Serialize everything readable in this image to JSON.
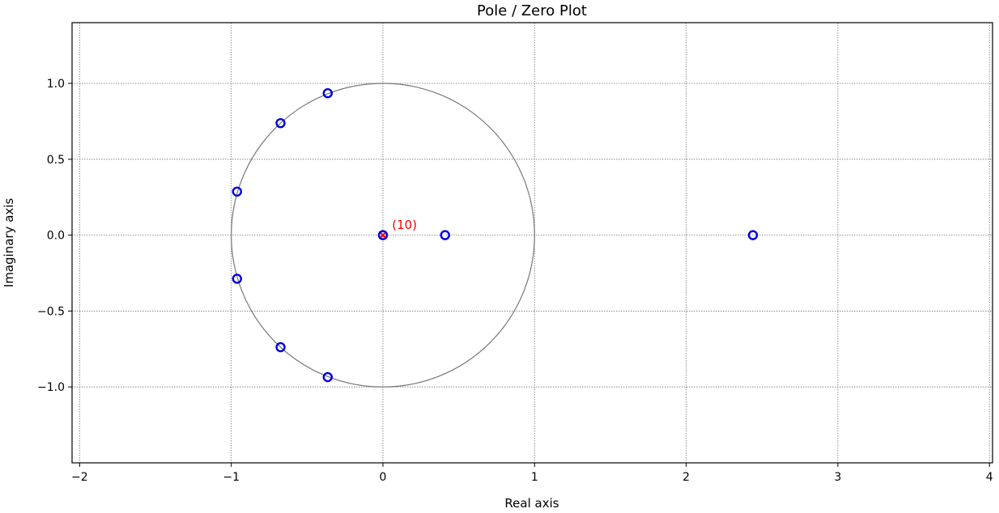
{
  "chart_data": {
    "type": "scatter",
    "title": "Pole / Zero Plot",
    "xlabel": "Real axis",
    "ylabel": "Imaginary axis",
    "xlim": [
      -2.05,
      4.02
    ],
    "ylim": [
      -1.5,
      1.4
    ],
    "xticks": [
      -2,
      -1,
      0,
      1,
      2,
      3,
      4
    ],
    "xtick_labels": [
      "−2",
      "−1",
      "0",
      "1",
      "2",
      "3",
      "4"
    ],
    "yticks": [
      1.0,
      0.5,
      0.0,
      -0.5,
      -1.0
    ],
    "ytick_labels": [
      "1.0",
      "0.5",
      "0.0",
      "−0.5",
      "−1.0"
    ],
    "grid": true,
    "unit_circle": true,
    "zeros": [
      {
        "re": -0.364,
        "im": 0.935
      },
      {
        "re": -0.675,
        "im": 0.738
      },
      {
        "re": -0.962,
        "im": 0.287
      },
      {
        "re": -0.962,
        "im": -0.287
      },
      {
        "re": -0.675,
        "im": -0.738
      },
      {
        "re": -0.364,
        "im": -0.935
      },
      {
        "re": 0.0,
        "im": 0.0
      },
      {
        "re": 0.41,
        "im": 0.0
      },
      {
        "re": 2.44,
        "im": 0.0
      }
    ],
    "poles": [
      {
        "re": 0.0,
        "im": 0.0
      }
    ],
    "annotations": [
      {
        "text": "(10)",
        "re": 0.06,
        "im": 0.04
      }
    ],
    "colors": {
      "zero": "#0000dd",
      "pole": "#ff0000",
      "annotation": "#ff0000",
      "circle": "#777777",
      "grid": "#777777"
    }
  }
}
